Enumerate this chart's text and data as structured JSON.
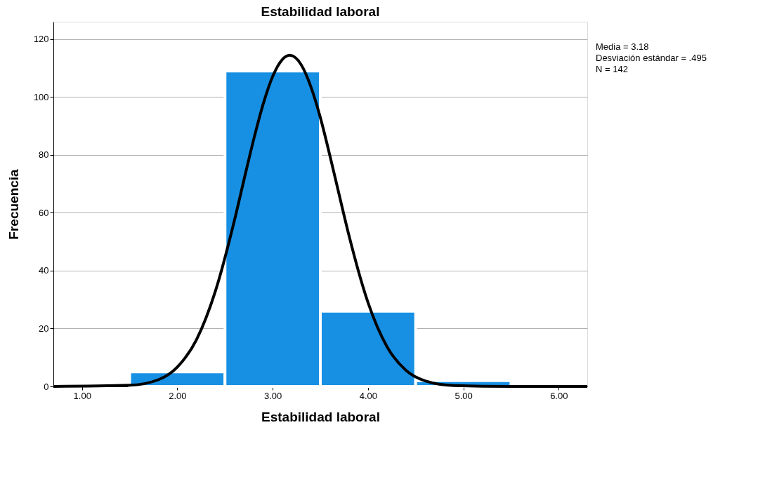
{
  "chart_data": {
    "type": "histogram",
    "title": "Estabilidad laboral",
    "xlabel": "Estabilidad laboral",
    "ylabel": "Frecuencia",
    "bins": [
      1.5,
      2.5,
      3.5,
      4.5,
      5.5
    ],
    "series": [
      {
        "color": "#1790e4",
        "values": [
          5,
          109,
          26,
          2
        ]
      },
      {
        "type": "line",
        "color": "#000000",
        "x": [
          0.7,
          1.5,
          1.8,
          2.0,
          2.2,
          2.4,
          2.6,
          2.7,
          2.8,
          2.9,
          3.0,
          3.1,
          3.18,
          3.3,
          3.4,
          3.5,
          3.6,
          3.7,
          3.8,
          4.0,
          4.2,
          4.4,
          4.6,
          4.9,
          5.5,
          6.3
        ],
        "values": [
          0,
          0.4,
          2.3,
          6.7,
          16.1,
          33.0,
          57.5,
          71.5,
          85.2,
          97.5,
          107.1,
          112.9,
          114.4,
          111.1,
          103.6,
          92.9,
          79.8,
          65.9,
          52.2,
          29.0,
          13.7,
          5.5,
          1.9,
          0.3,
          0,
          0
        ]
      }
    ],
    "xlim": [
      0.7,
      6.3
    ],
    "xticks": [
      {
        "value": 1,
        "label": "1.00"
      },
      {
        "value": 2,
        "label": "2.00"
      },
      {
        "value": 3,
        "label": "3.00"
      },
      {
        "value": 4,
        "label": "4.00"
      },
      {
        "value": 5,
        "label": "5.00"
      },
      {
        "value": 6,
        "label": "6.00"
      }
    ],
    "ylim": [
      0,
      126
    ],
    "yticks": [
      0,
      20,
      40,
      60,
      80,
      100,
      120
    ],
    "grid": "y",
    "annotations": [
      "Media = 3.18",
      "Desviación estándar = .495",
      "N = 142"
    ]
  }
}
